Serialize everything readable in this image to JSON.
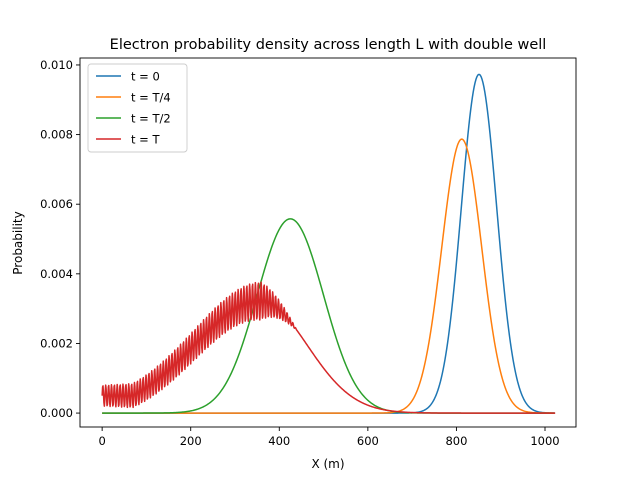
{
  "chart_data": {
    "type": "line",
    "title": "Electron probability density across length L with double well",
    "xlabel": "X (m)",
    "ylabel": "Probability",
    "xlim": [
      -50,
      1070
    ],
    "ylim": [
      -0.0004,
      0.0102
    ],
    "xticks": [
      0,
      200,
      400,
      600,
      800,
      1000
    ],
    "xtick_labels": [
      "0",
      "200",
      "400",
      "600",
      "800",
      "1000"
    ],
    "yticks": [
      0.0,
      0.002,
      0.004,
      0.006,
      0.008,
      0.01
    ],
    "ytick_labels": [
      "0.000",
      "0.002",
      "0.004",
      "0.006",
      "0.008",
      "0.010"
    ],
    "grid": false,
    "legend_position": "top-left",
    "series": [
      {
        "name": "t = 0",
        "color": "#1f77b4",
        "shape": "gaussian",
        "center": 851,
        "peak": 0.00973,
        "width": 40,
        "x_start": 0,
        "x_end": 1023
      },
      {
        "name": "t = T/4",
        "color": "#ff7f0e",
        "shape": "gaussian",
        "center": 812,
        "peak": 0.00787,
        "width": 45,
        "x_start": 0,
        "x_end": 1023
      },
      {
        "name": "t = T/2",
        "color": "#2ca02c",
        "shape": "gaussian",
        "center": 425,
        "peak": 0.00558,
        "width": 75,
        "x_start": 0,
        "x_end": 1023
      },
      {
        "name": "t = T",
        "color": "#d62728",
        "shape": "skewed-oscillating",
        "center": 358,
        "peak": 0.00322,
        "width_left": 150,
        "width_right": 105,
        "x_start": 0,
        "x_end": 1023
      }
    ]
  }
}
